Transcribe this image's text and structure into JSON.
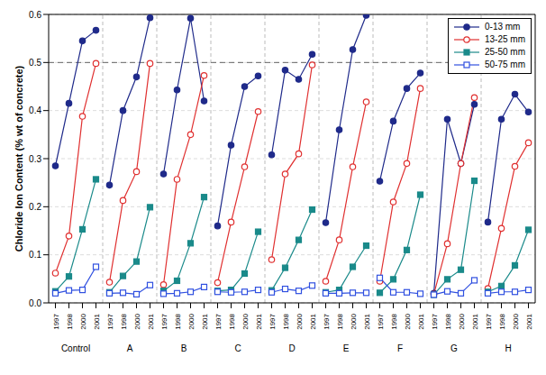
{
  "chart_data": {
    "type": "line",
    "y_label": "Chloride Ion Content (% wt of concrete)",
    "categories": [
      "1997",
      "1998",
      "2000",
      "2001",
      "1997",
      "1998",
      "2000",
      "2001",
      "1997",
      "1998",
      "2000",
      "2001",
      "1997",
      "1998",
      "2000",
      "2001",
      "1997",
      "1998",
      "2000",
      "2001",
      "1997",
      "1998",
      "2000",
      "2001",
      "1997",
      "1998",
      "2000",
      "2001",
      "1997",
      "1998",
      "2000",
      "2001",
      "1997",
      "1998",
      "2000",
      "2001"
    ],
    "groups": [
      "Control",
      "A",
      "B",
      "C",
      "D",
      "E",
      "F",
      "G",
      "H"
    ],
    "ylim": [
      0,
      0.6
    ],
    "yticks": [
      {
        "value": 0,
        "label": "0.0"
      },
      0.1,
      0.2,
      0.3,
      0.4,
      0.5,
      0.6
    ],
    "grid": true,
    "legend": "upper right",
    "threshold": 0.5,
    "series": [
      {
        "name": "0-13 mm",
        "color": "#1f2a8a",
        "marker": "circle",
        "values": [
          0.285,
          0.415,
          0.545,
          0.567,
          0.245,
          0.4,
          0.47,
          0.593,
          0.268,
          0.443,
          0.592,
          0.42,
          0.16,
          0.328,
          0.45,
          0.472,
          0.308,
          0.484,
          0.465,
          0.517,
          0.167,
          0.36,
          0.527,
          0.598,
          0.253,
          0.378,
          0.446,
          0.478,
          0.02,
          0.382,
          0.29,
          0.413,
          0.168,
          0.382,
          0.434,
          0.397
        ]
      },
      {
        "name": "13-25 mm",
        "color": "#e03030",
        "marker": "circle-open",
        "values": [
          0.062,
          0.139,
          0.388,
          0.498,
          0.043,
          0.213,
          0.273,
          0.498,
          0.038,
          0.257,
          0.35,
          0.473,
          0.042,
          0.168,
          0.283,
          0.398,
          0.09,
          0.268,
          0.31,
          0.495,
          0.045,
          0.131,
          0.283,
          0.418,
          0.045,
          0.21,
          0.29,
          0.446,
          0.018,
          0.123,
          0.29,
          0.427,
          0.03,
          0.155,
          0.284,
          0.333
        ]
      },
      {
        "name": "25-50 mm",
        "color": "#1a8a8a",
        "marker": "square",
        "values": [
          0.024,
          0.055,
          0.153,
          0.257,
          0.022,
          0.056,
          0.086,
          0.199,
          0.025,
          0.046,
          0.124,
          0.22,
          0.025,
          0.027,
          0.061,
          0.148,
          0.026,
          0.073,
          0.131,
          0.194,
          0.022,
          0.027,
          0.075,
          0.119,
          0.021,
          0.049,
          0.11,
          0.225,
          0.017,
          0.049,
          0.069,
          0.254,
          0.023,
          0.035,
          0.078,
          0.152
        ]
      },
      {
        "name": "50-75 mm",
        "color": "#3050e0",
        "marker": "square-open",
        "values": [
          0.02,
          0.026,
          0.027,
          0.075,
          0.02,
          0.021,
          0.018,
          0.037,
          0.019,
          0.02,
          0.023,
          0.033,
          0.023,
          0.022,
          0.023,
          0.027,
          0.022,
          0.029,
          0.025,
          0.036,
          0.02,
          0.02,
          0.021,
          0.021,
          0.052,
          0.022,
          0.022,
          0.019,
          0.017,
          0.024,
          0.02,
          0.047,
          0.02,
          0.023,
          0.023,
          0.027
        ]
      }
    ]
  }
}
